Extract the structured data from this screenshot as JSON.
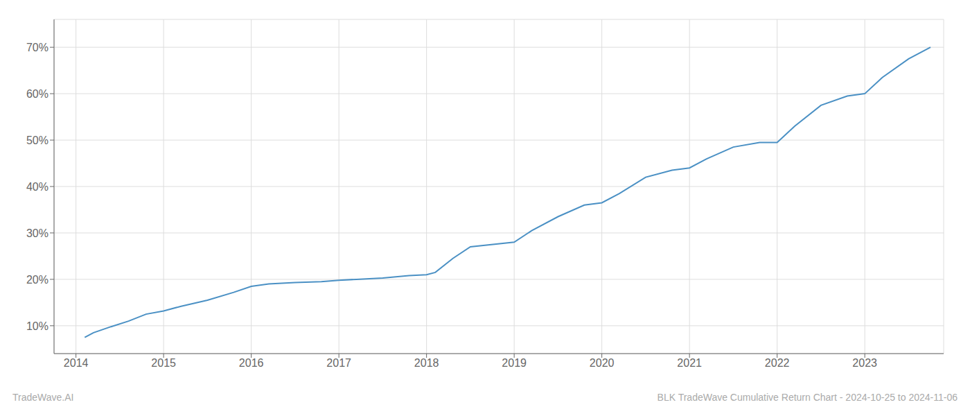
{
  "chart_data": {
    "type": "line",
    "title": "BLK TradeWave Cumulative Return Chart - 2024-10-25 to 2024-11-06",
    "annotations": [
      "TradeWave.AI"
    ],
    "x": [
      2014.1,
      2014.2,
      2014.4,
      2014.6,
      2014.8,
      2015.0,
      2015.2,
      2015.5,
      2015.8,
      2016.0,
      2016.2,
      2016.5,
      2016.8,
      2017.0,
      2017.2,
      2017.5,
      2017.8,
      2018.0,
      2018.1,
      2018.3,
      2018.5,
      2019.0,
      2019.2,
      2019.5,
      2019.8,
      2020.0,
      2020.2,
      2020.5,
      2020.8,
      2021.0,
      2021.2,
      2021.5,
      2021.8,
      2022.0,
      2022.2,
      2022.5,
      2022.8,
      2023.0,
      2023.2,
      2023.5,
      2023.75
    ],
    "values": [
      7.5,
      8.5,
      9.8,
      11.0,
      12.5,
      13.2,
      14.2,
      15.5,
      17.2,
      18.5,
      19.0,
      19.3,
      19.5,
      19.8,
      20.0,
      20.3,
      20.8,
      21.0,
      21.5,
      24.5,
      27.0,
      28.0,
      30.5,
      33.5,
      36.0,
      36.5,
      38.5,
      42.0,
      43.5,
      44.0,
      46.0,
      48.5,
      49.5,
      49.5,
      53.0,
      57.5,
      59.5,
      60.0,
      63.5,
      67.5,
      70.0
    ],
    "color": "#4a90c4",
    "xlim": [
      2013.75,
      2023.9
    ],
    "xticks": [
      2014,
      2015,
      2016,
      2017,
      2018,
      2019,
      2020,
      2021,
      2022,
      2023
    ],
    "ylim": [
      4,
      76
    ],
    "yticks": [
      {
        "value": 10,
        "label": "10%"
      },
      {
        "value": 20,
        "label": "20%"
      },
      {
        "value": 30,
        "label": "30%"
      },
      {
        "value": 40,
        "label": "40%"
      },
      {
        "value": 50,
        "label": "50%"
      },
      {
        "value": 60,
        "label": "60%"
      },
      {
        "value": 70,
        "label": "70%"
      }
    ],
    "grid": true
  }
}
